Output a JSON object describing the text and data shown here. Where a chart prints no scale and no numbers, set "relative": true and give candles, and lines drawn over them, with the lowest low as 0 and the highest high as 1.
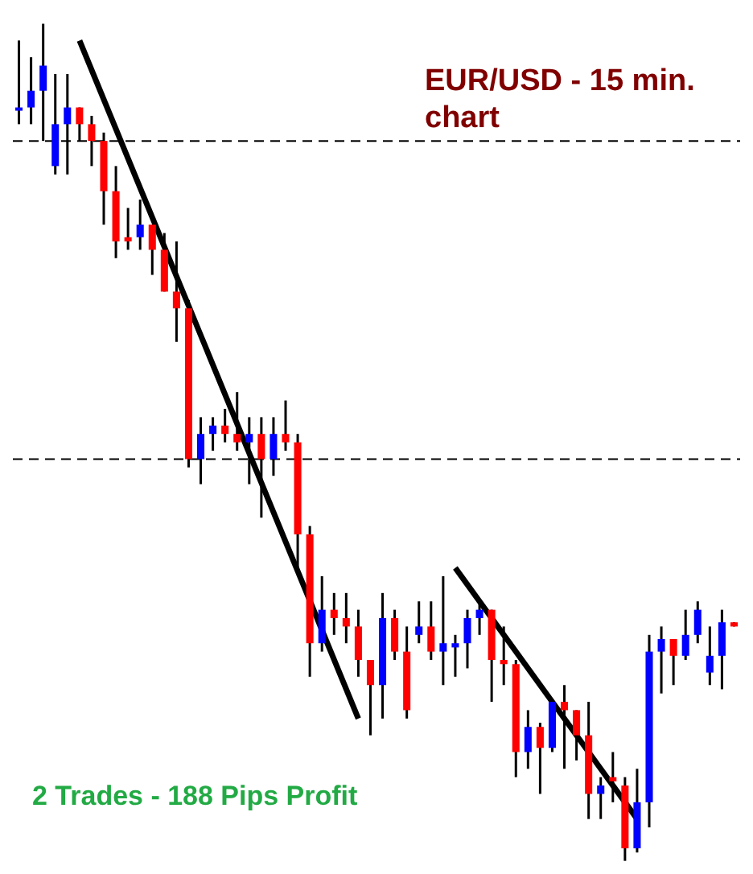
{
  "chart_data": {
    "type": "candlestick",
    "title": "EUR/USD - 15 min. chart",
    "relative": true,
    "categories": [
      null,
      null,
      null,
      null,
      null,
      null,
      null,
      null,
      null,
      null,
      null,
      null,
      null,
      null,
      null,
      null,
      null,
      null,
      null,
      null,
      null,
      null,
      null,
      null,
      null,
      null,
      null,
      null,
      null,
      null,
      null,
      null,
      null,
      null,
      null,
      null,
      null,
      null,
      null,
      null,
      null,
      null,
      null,
      null,
      null,
      null,
      null,
      null,
      null,
      null,
      null,
      null,
      null,
      null,
      null,
      null,
      null,
      null,
      null,
      null
    ],
    "ohlc": [
      [
        0.9,
        0.98,
        0.88,
        0.9
      ],
      [
        0.9,
        0.96,
        0.88,
        0.92
      ],
      [
        0.92,
        1,
        0.86,
        0.95
      ],
      [
        0.83,
        0.94,
        0.82,
        0.88
      ],
      [
        0.88,
        0.94,
        0.82,
        0.9
      ],
      [
        0.9,
        0.9,
        0.86,
        0.88
      ],
      [
        0.88,
        0.89,
        0.83,
        0.86
      ],
      [
        0.86,
        0.87,
        0.76,
        0.8
      ],
      [
        0.8,
        0.83,
        0.72,
        0.74
      ],
      [
        0.745,
        0.78,
        0.73,
        0.74
      ],
      [
        0.745,
        0.79,
        0.73,
        0.76
      ],
      [
        0.76,
        0.76,
        0.7,
        0.73
      ],
      [
        0.73,
        0.75,
        0.68,
        0.68
      ],
      [
        0.68,
        0.74,
        0.62,
        0.66
      ],
      [
        0.66,
        0.67,
        0.47,
        0.48
      ],
      [
        0.48,
        0.53,
        0.45,
        0.51
      ],
      [
        0.51,
        0.53,
        0.49,
        0.52
      ],
      [
        0.52,
        0.54,
        0.5,
        0.51
      ],
      [
        0.51,
        0.56,
        0.49,
        0.5
      ],
      [
        0.5,
        0.53,
        0.45,
        0.51
      ],
      [
        0.51,
        0.53,
        0.41,
        0.48
      ],
      [
        0.48,
        0.53,
        0.46,
        0.51
      ],
      [
        0.51,
        0.55,
        0.49,
        0.5
      ],
      [
        0.5,
        0.51,
        0.35,
        0.39
      ],
      [
        0.39,
        0.4,
        0.22,
        0.26
      ],
      [
        0.26,
        0.34,
        0.25,
        0.3
      ],
      [
        0.3,
        0.32,
        0.27,
        0.29
      ],
      [
        0.29,
        0.32,
        0.26,
        0.28
      ],
      [
        0.28,
        0.3,
        0.22,
        0.24
      ],
      [
        0.24,
        0.24,
        0.15,
        0.21
      ],
      [
        0.21,
        0.32,
        0.17,
        0.29
      ],
      [
        0.29,
        0.3,
        0.24,
        0.25
      ],
      [
        0.25,
        0.28,
        0.17,
        0.18
      ],
      [
        0.27,
        0.31,
        0.26,
        0.28
      ],
      [
        0.28,
        0.31,
        0.24,
        0.25
      ],
      [
        0.25,
        0.34,
        0.21,
        0.26
      ],
      [
        0.255,
        0.27,
        0.22,
        0.26
      ],
      [
        0.26,
        0.3,
        0.23,
        0.29
      ],
      [
        0.29,
        0.31,
        0.27,
        0.3
      ],
      [
        0.3,
        0.3,
        0.19,
        0.24
      ],
      [
        0.24,
        0.28,
        0.21,
        0.235
      ],
      [
        0.235,
        0.24,
        0.1,
        0.13
      ],
      [
        0.13,
        0.18,
        0.11,
        0.16
      ],
      [
        0.16,
        0.165,
        0.08,
        0.135
      ],
      [
        0.135,
        0.19,
        0.13,
        0.19
      ],
      [
        0.19,
        0.21,
        0.11,
        0.18
      ],
      [
        0.18,
        0.18,
        0.12,
        0.15
      ],
      [
        0.15,
        0.19,
        0.05,
        0.08
      ],
      [
        0.08,
        0.1,
        0.05,
        0.09
      ],
      [
        0.1,
        0.13,
        0.07,
        0.095
      ],
      [
        0.09,
        0.1,
        0,
        0.015
      ],
      [
        0.015,
        0.11,
        0.01,
        0.07
      ],
      [
        0.07,
        0.27,
        0.04,
        0.25
      ],
      [
        0.25,
        0.28,
        0.2,
        0.265
      ],
      [
        0.265,
        0.265,
        0.21,
        0.245
      ],
      [
        0.245,
        0.3,
        0.24,
        0.27
      ],
      [
        0.27,
        0.31,
        0.26,
        0.3
      ],
      [
        0.225,
        0.28,
        0.21,
        0.245
      ],
      [
        0.245,
        0.3,
        0.205,
        0.285
      ],
      [
        0.285,
        0.285,
        0.28,
        0.28
      ]
    ],
    "series": [
      {
        "type": "line",
        "color": "#000000",
        "values": [
          null,
          null,
          null,
          null,
          null,
          0.98,
          null,
          null,
          null,
          null,
          null,
          null,
          null,
          null,
          null,
          null,
          null,
          null,
          null,
          null,
          null,
          null,
          null,
          null,
          null,
          null,
          null,
          null,
          0.17,
          null,
          null,
          null,
          null,
          null,
          null,
          null,
          null,
          null,
          null,
          null,
          null,
          null,
          null,
          null,
          null,
          null,
          null,
          null,
          null,
          null,
          null,
          null,
          null,
          null,
          null,
          null,
          null,
          null,
          null,
          null
        ]
      },
      {
        "type": "line",
        "color": "#000000",
        "values": [
          null,
          null,
          null,
          null,
          null,
          null,
          null,
          null,
          null,
          null,
          null,
          null,
          null,
          null,
          null,
          null,
          null,
          null,
          null,
          null,
          null,
          null,
          null,
          null,
          null,
          null,
          null,
          null,
          null,
          null,
          null,
          null,
          null,
          null,
          null,
          null,
          0.35,
          null,
          null,
          null,
          null,
          null,
          null,
          null,
          null,
          null,
          null,
          null,
          null,
          null,
          null,
          0.05,
          null,
          null,
          null,
          null,
          null,
          null,
          null,
          null
        ]
      }
    ],
    "ref_lines": [
      {
        "axis": "y",
        "value": 0.86,
        "color": "#000000",
        "line_style": "dashed"
      },
      {
        "axis": "y",
        "value": 0.48,
        "color": "#000000",
        "line_style": "dashed"
      }
    ],
    "annotations": [
      "2 Trades - 188 Pips Profit"
    ]
  }
}
